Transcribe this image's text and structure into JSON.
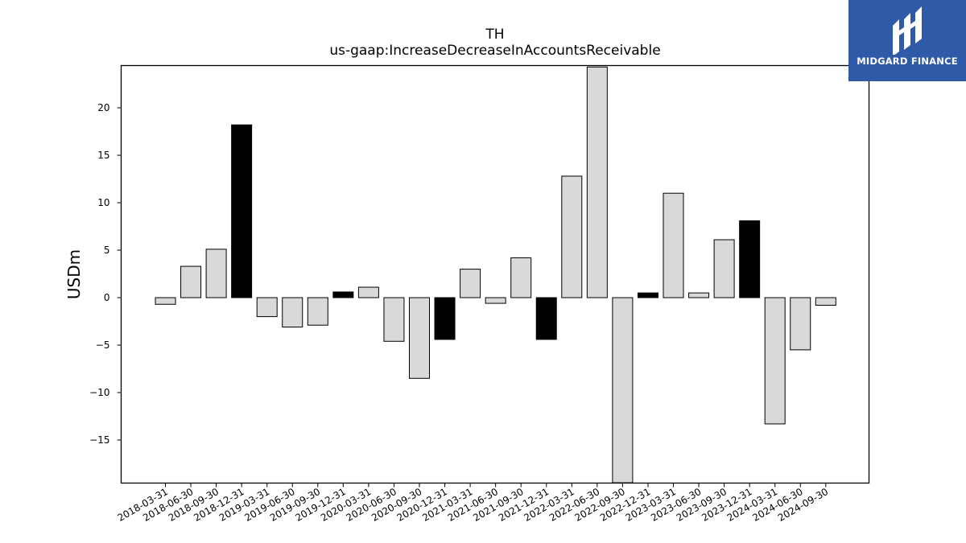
{
  "logo": {
    "text": "MIDGARD FINANCE",
    "icon": "midgard-logo-icon"
  },
  "chart_data": {
    "type": "bar",
    "title": "TH",
    "subtitle": "us-gaap:IncreaseDecreaseInAccountsReceivable",
    "xlabel": "",
    "ylabel": "USDm",
    "ylim": [
      -19.5,
      24.3
    ],
    "yticks": [
      -15,
      -10,
      -5,
      0,
      5,
      10,
      15,
      20
    ],
    "grid": false,
    "categories": [
      "2018-03-31",
      "2018-06-30",
      "2018-09-30",
      "2018-12-31",
      "2019-03-31",
      "2019-06-30",
      "2019-09-30",
      "2019-12-31",
      "2020-03-31",
      "2020-06-30",
      "2020-09-30",
      "2020-12-31",
      "2021-03-31",
      "2021-06-30",
      "2021-09-30",
      "2021-12-31",
      "2022-03-31",
      "2022-06-30",
      "2022-09-30",
      "2022-12-31",
      "2023-03-31",
      "2023-06-30",
      "2023-09-30",
      "2023-12-31",
      "2024-03-31",
      "2024-06-30",
      "2024-09-30"
    ],
    "values": [
      -0.7,
      3.3,
      5.1,
      18.2,
      -2.0,
      -3.1,
      -2.9,
      0.6,
      1.1,
      -4.6,
      -8.5,
      -4.4,
      3.0,
      -0.6,
      4.2,
      -4.4,
      12.8,
      24.3,
      -19.5,
      0.5,
      11.0,
      0.5,
      6.1,
      8.1,
      -13.3,
      -5.5,
      -0.8
    ],
    "bar_colors": [
      "#d9d9d9",
      "#d9d9d9",
      "#d9d9d9",
      "#000000",
      "#d9d9d9",
      "#d9d9d9",
      "#d9d9d9",
      "#000000",
      "#d9d9d9",
      "#d9d9d9",
      "#d9d9d9",
      "#000000",
      "#d9d9d9",
      "#d9d9d9",
      "#d9d9d9",
      "#000000",
      "#d9d9d9",
      "#d9d9d9",
      "#d9d9d9",
      "#000000",
      "#d9d9d9",
      "#d9d9d9",
      "#d9d9d9",
      "#000000",
      "#d9d9d9",
      "#d9d9d9",
      "#d9d9d9"
    ],
    "edge_color": "#000000"
  }
}
